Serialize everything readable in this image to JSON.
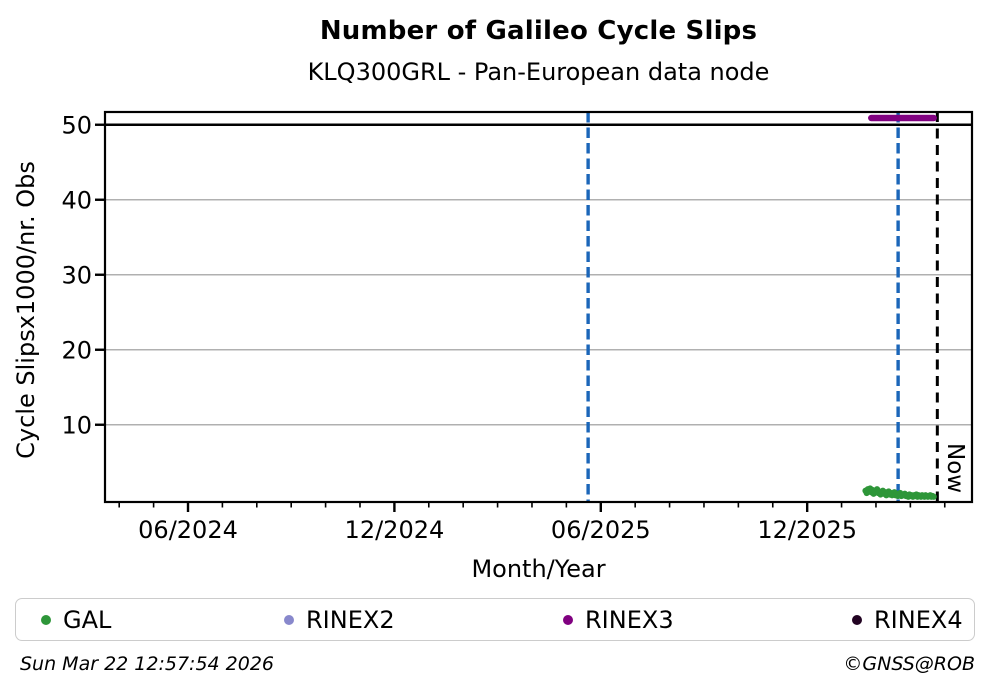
{
  "header": {
    "title": "Number of Galileo Cycle Slips",
    "subtitle": "KLQ300GRL - Pan-European data node"
  },
  "footer": {
    "timestamp": "Sun Mar 22 12:57:54 2026",
    "credit": "©GNSS@ROB"
  },
  "legend": {
    "items": [
      {
        "label": "GAL",
        "color": "#2E9639"
      },
      {
        "label": "RINEX2",
        "color": "#8888CC"
      },
      {
        "label": "RINEX3",
        "color": "#800080"
      },
      {
        "label": "RINEX4",
        "color": "#220322"
      }
    ]
  },
  "chart_data": {
    "type": "scatter",
    "title": "Number of Galileo Cycle Slips",
    "subtitle": "KLQ300GRL - Pan-European data node",
    "xlabel": "Month/Year",
    "ylabel": "Cycle Slipsx1000/nr. Obs",
    "xlim": [
      2024.2156,
      2026.316
    ],
    "ylim": [
      -0.3,
      51.7
    ],
    "grid": "horizontal-only",
    "grid_color": "#b0b0b0",
    "x_ticks": [
      {
        "value": 2024.4167,
        "label": "06/2024"
      },
      {
        "value": 2024.9167,
        "label": "12/2024"
      },
      {
        "value": 2025.4167,
        "label": "06/2025"
      },
      {
        "value": 2025.9167,
        "label": "12/2025"
      }
    ],
    "x_minor_step_months": 1,
    "y_ticks": [
      10,
      20,
      30,
      40,
      50
    ],
    "grid_y": [
      10,
      20,
      30,
      40
    ],
    "cap_line_y": 50,
    "markers": {
      "event_lines": [
        {
          "x": 2025.386,
          "color": "#1B66B9",
          "style": "dashed"
        },
        {
          "x": 2026.137,
          "color": "#1B66B9",
          "style": "dashed"
        }
      ],
      "now_line": {
        "x": 2026.232,
        "label": "Now",
        "color": "#000000",
        "style": "dashed"
      }
    },
    "legend_position": "bottom",
    "series": [
      {
        "name": "GAL",
        "type": "scatter",
        "color": "#2E9639",
        "points": [
          [
            2026.058,
            1.2
          ],
          [
            2026.0608,
            0.9
          ],
          [
            2026.0636,
            1.4
          ],
          [
            2026.0664,
            1.1
          ],
          [
            2026.0692,
            1.5
          ],
          [
            2026.072,
            1.0
          ],
          [
            2026.0748,
            1.3
          ],
          [
            2026.0776,
            0.8
          ],
          [
            2026.0804,
            1.2
          ],
          [
            2026.0832,
            1.0
          ],
          [
            2026.086,
            1.4
          ],
          [
            2026.0888,
            0.9
          ],
          [
            2026.0916,
            1.1
          ],
          [
            2026.0944,
            0.7
          ],
          [
            2026.0972,
            1.0
          ],
          [
            2026.1,
            1.2
          ],
          [
            2026.1028,
            0.8
          ],
          [
            2026.1056,
            1.0
          ],
          [
            2026.1084,
            0.6
          ],
          [
            2026.1112,
            0.9
          ],
          [
            2026.114,
            1.1
          ],
          [
            2026.1168,
            0.7
          ],
          [
            2026.1196,
            0.9
          ],
          [
            2026.1224,
            0.6
          ],
          [
            2026.1252,
            0.8
          ],
          [
            2026.128,
            1.0
          ],
          [
            2026.1308,
            0.6
          ],
          [
            2026.1336,
            0.8
          ],
          [
            2026.1364,
            0.5
          ],
          [
            2026.1392,
            0.7
          ],
          [
            2026.142,
            0.9
          ],
          [
            2026.1448,
            0.5
          ],
          [
            2026.1476,
            0.7
          ],
          [
            2026.1504,
            0.6
          ],
          [
            2026.1532,
            0.8
          ],
          [
            2026.156,
            0.5
          ],
          [
            2026.1588,
            0.6
          ],
          [
            2026.1616,
            0.4
          ],
          [
            2026.1644,
            0.7
          ],
          [
            2026.1672,
            0.5
          ],
          [
            2026.17,
            0.6
          ],
          [
            2026.1728,
            0.4
          ],
          [
            2026.1756,
            0.6
          ],
          [
            2026.1784,
            0.5
          ],
          [
            2026.1812,
            0.7
          ],
          [
            2026.184,
            0.4
          ],
          [
            2026.1868,
            0.6
          ],
          [
            2026.1896,
            0.5
          ],
          [
            2026.1924,
            0.4
          ],
          [
            2026.1952,
            0.6
          ],
          [
            2026.198,
            0.5
          ],
          [
            2026.2008,
            0.4
          ],
          [
            2026.2036,
            0.6
          ],
          [
            2026.2064,
            0.5
          ],
          [
            2026.2092,
            0.4
          ],
          [
            2026.212,
            0.5
          ],
          [
            2026.2148,
            0.6
          ],
          [
            2026.2176,
            0.4
          ],
          [
            2026.2204,
            0.5
          ],
          [
            2026.2232,
            0.4
          ]
        ]
      },
      {
        "name": "RINEX2",
        "type": "scatter",
        "color": "#8888CC",
        "points": []
      },
      {
        "name": "RINEX3",
        "type": "line",
        "color": "#800080",
        "points": [
          [
            2026.072,
            50.9
          ],
          [
            2026.2232,
            50.9
          ]
        ]
      },
      {
        "name": "RINEX4",
        "type": "scatter",
        "color": "#220322",
        "points": []
      }
    ]
  }
}
